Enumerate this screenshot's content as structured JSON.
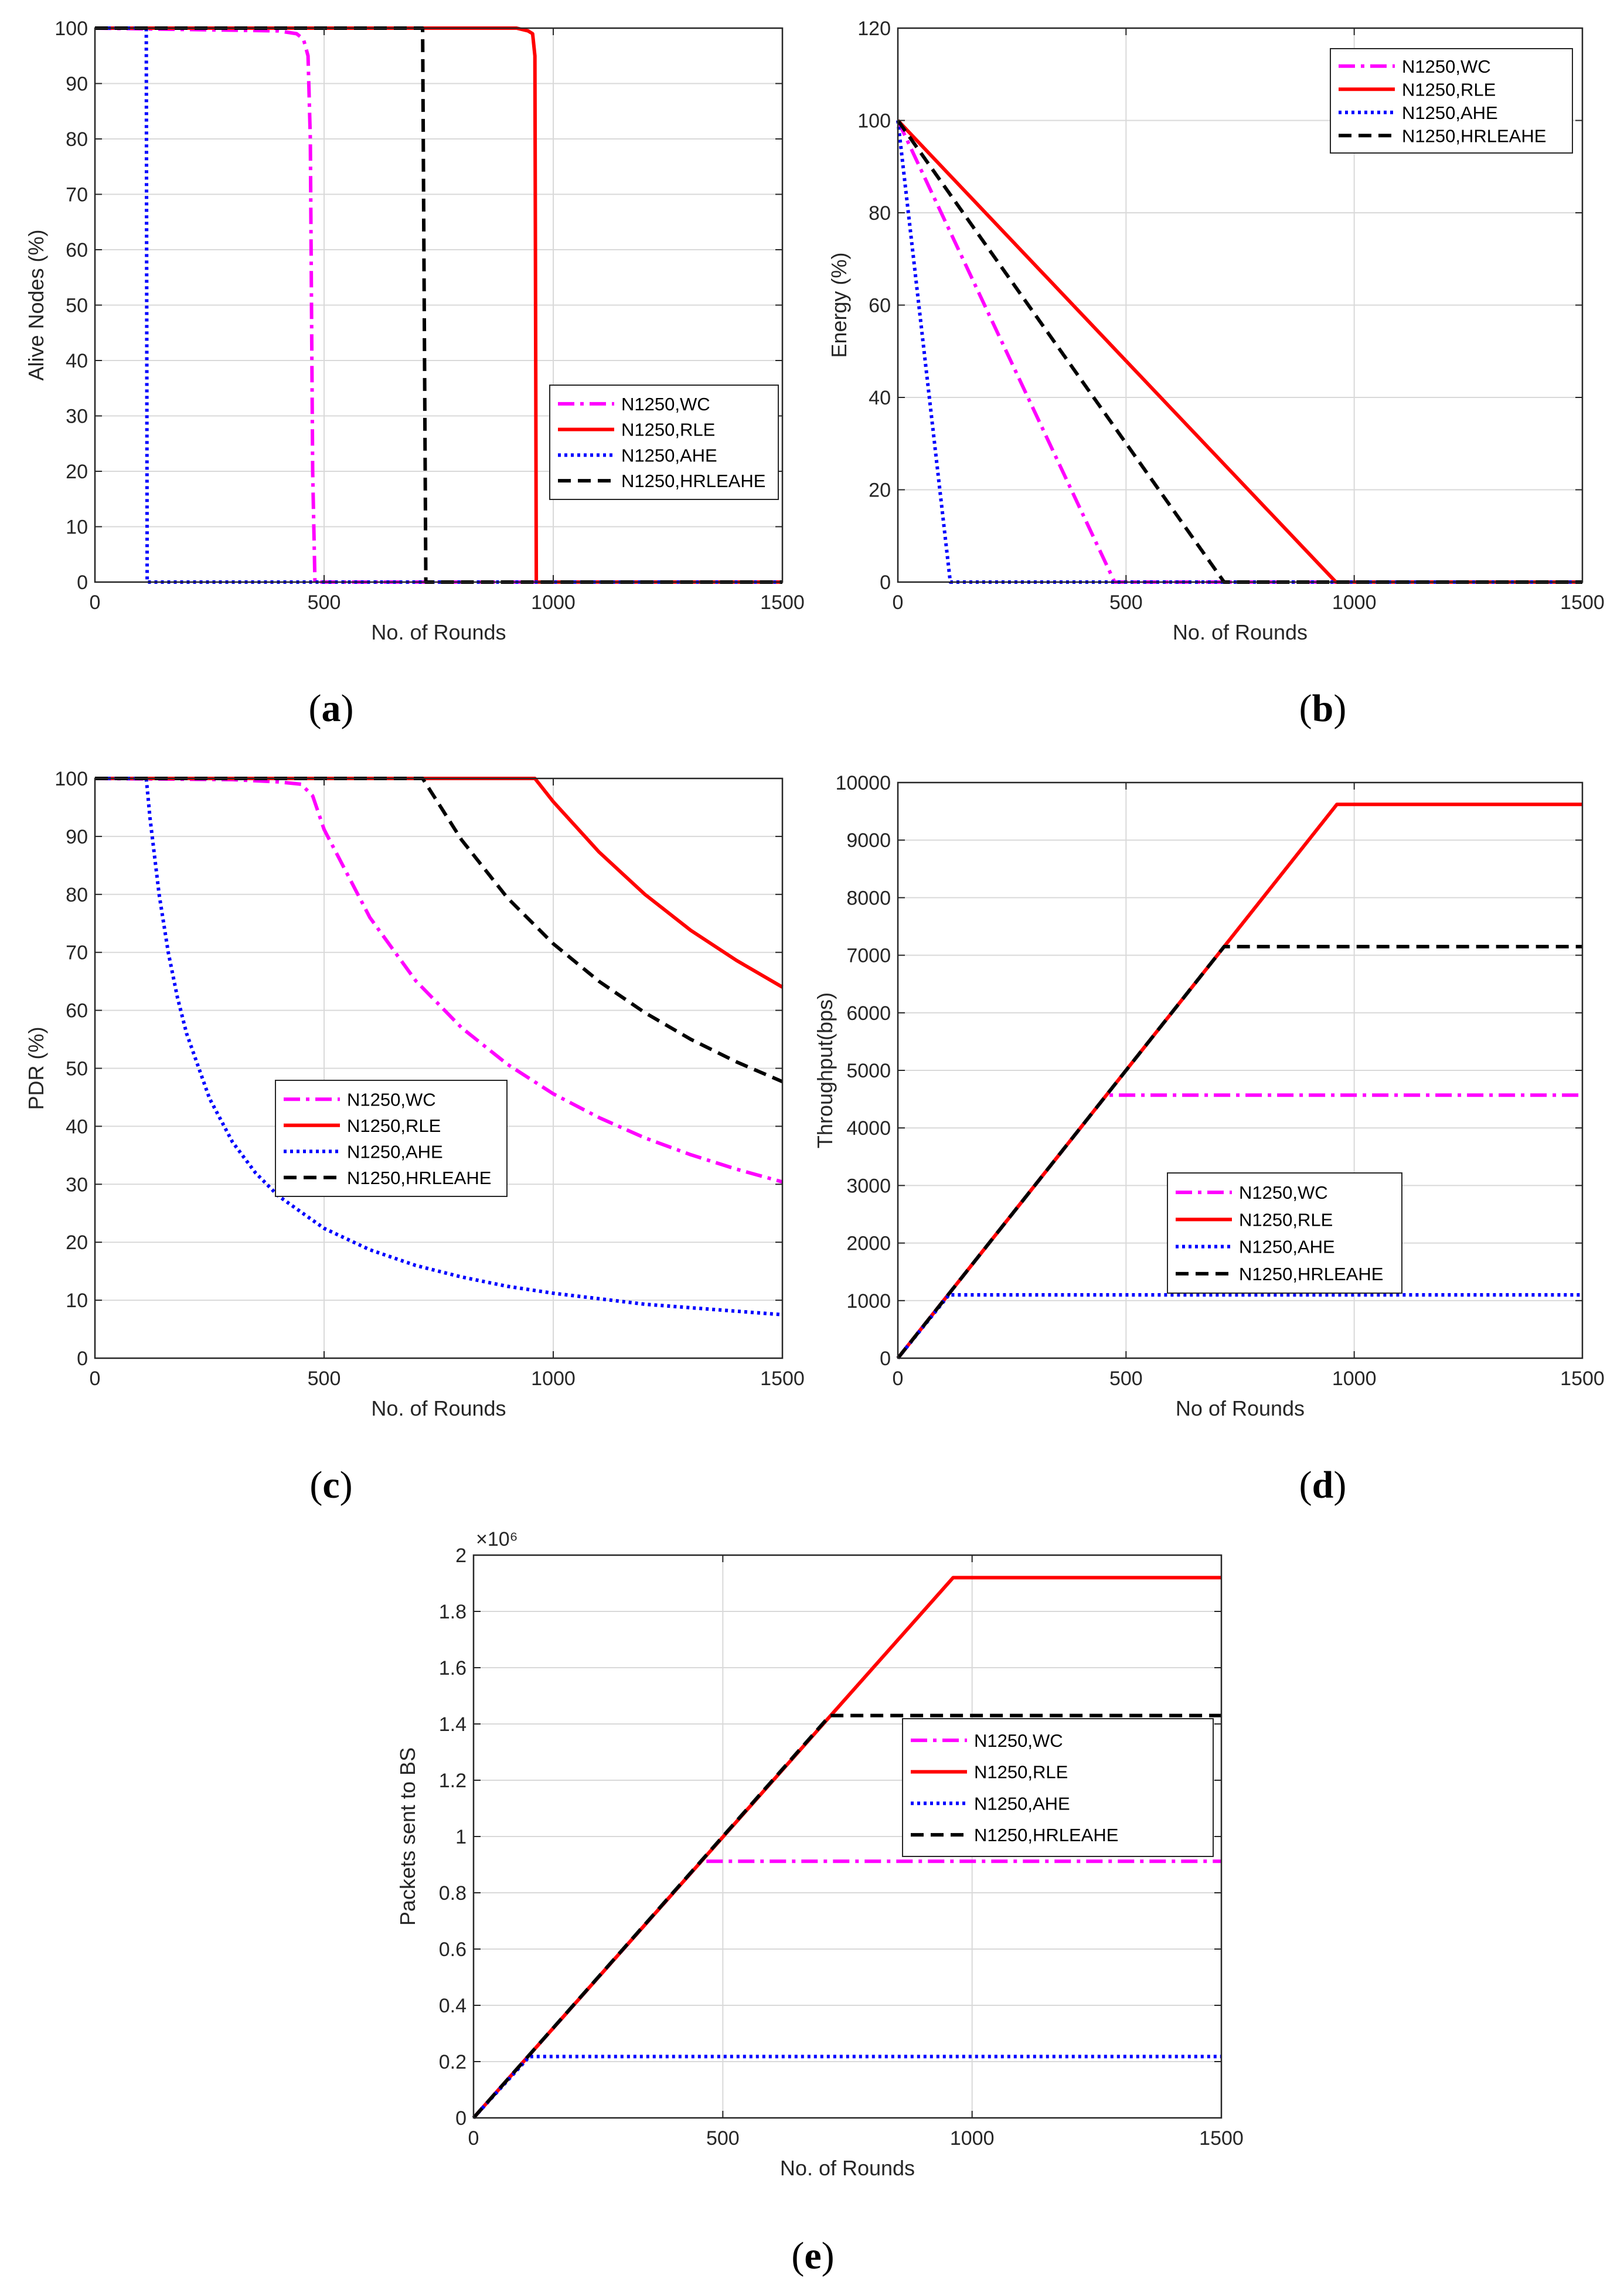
{
  "colors": {
    "WC": "#ff00ff",
    "RLE": "#ff0000",
    "AHE": "#0000ff",
    "HRLEAHE": "#000000",
    "grid": "#d9d9d9",
    "axis": "#262626"
  },
  "chart_data": [
    {
      "id": "a",
      "caption": "a",
      "type": "line",
      "title": "",
      "xlabel": "No. of Rounds",
      "ylabel": "Alive Nodes (%)",
      "xlim": [
        0,
        1500
      ],
      "ylim": [
        0,
        100
      ],
      "xticks": [
        0,
        500,
        1000,
        1500
      ],
      "yticks": [
        0,
        10,
        20,
        30,
        40,
        50,
        60,
        70,
        80,
        90,
        100
      ],
      "ytick_labels": [
        "0",
        "10",
        "20",
        "30",
        "40",
        "50",
        "60",
        "70",
        "80",
        "90",
        "100"
      ],
      "grid": true,
      "legend_position": "lower-right",
      "series": [
        {
          "name": "N1250,WC",
          "key": "WC",
          "x": [
            0,
            400,
            440,
            455,
            465,
            470,
            475,
            480,
            1500
          ],
          "y": [
            100,
            99.5,
            99,
            98,
            95,
            80,
            20,
            0,
            0
          ]
        },
        {
          "name": "N1250,RLE",
          "key": "RLE",
          "x": [
            0,
            920,
            945,
            955,
            960,
            963,
            1500
          ],
          "y": [
            100,
            100,
            99.5,
            99,
            95,
            0,
            0
          ]
        },
        {
          "name": "N1250,AHE",
          "key": "AHE",
          "x": [
            0,
            112,
            114,
            1500
          ],
          "y": [
            100,
            100,
            0,
            0
          ]
        },
        {
          "name": "N1250,HRLEAHE",
          "key": "HRLEAHE",
          "x": [
            0,
            715,
            722,
            1500
          ],
          "y": [
            100,
            100,
            0,
            0
          ]
        }
      ]
    },
    {
      "id": "b",
      "caption": "b",
      "type": "line",
      "title": "",
      "xlabel": "No. of Rounds",
      "ylabel": "Energy (%)",
      "xlim": [
        0,
        1500
      ],
      "ylim": [
        0,
        120
      ],
      "xticks": [
        0,
        500,
        1000,
        1500
      ],
      "yticks": [
        0,
        20,
        40,
        60,
        80,
        100,
        120
      ],
      "ytick_labels": [
        "0",
        "20",
        "40",
        "60",
        "80",
        "100",
        "120"
      ],
      "grid": true,
      "legend_position": "top-right",
      "series": [
        {
          "name": "N1250,WC",
          "key": "WC",
          "x": [
            0,
            475,
            1500
          ],
          "y": [
            100,
            0,
            0
          ]
        },
        {
          "name": "N1250,RLE",
          "key": "RLE",
          "x": [
            0,
            960,
            1500
          ],
          "y": [
            100,
            0,
            0
          ]
        },
        {
          "name": "N1250,AHE",
          "key": "AHE",
          "x": [
            0,
            115,
            1500
          ],
          "y": [
            100,
            0,
            0
          ]
        },
        {
          "name": "N1250,HRLEAHE",
          "key": "HRLEAHE",
          "x": [
            0,
            715,
            1500
          ],
          "y": [
            100,
            0,
            0
          ]
        }
      ]
    },
    {
      "id": "c",
      "caption": "c",
      "type": "line",
      "title": "",
      "xlabel": "No. of Rounds",
      "ylabel": "PDR (%)",
      "xlim": [
        0,
        1500
      ],
      "ylim": [
        0,
        100
      ],
      "xticks": [
        0,
        500,
        1000,
        1500
      ],
      "yticks": [
        0,
        10,
        20,
        30,
        40,
        50,
        60,
        70,
        80,
        90,
        100
      ],
      "ytick_labels": [
        "0",
        "10",
        "20",
        "30",
        "40",
        "50",
        "60",
        "70",
        "80",
        "90",
        "100"
      ],
      "grid": true,
      "legend_position": "center-left",
      "series": [
        {
          "name": "N1250,WC",
          "key": "WC",
          "x": [
            0,
            300,
            400,
            450,
            475,
            500,
            600,
            700,
            800,
            900,
            1000,
            1100,
            1200,
            1300,
            1400,
            1500
          ],
          "y": [
            100,
            99.8,
            99.4,
            99,
            97,
            91.2,
            76,
            65.1,
            57,
            50.7,
            45.6,
            41.5,
            38,
            35.1,
            32.6,
            30.4
          ]
        },
        {
          "name": "N1250,RLE",
          "key": "RLE",
          "x": [
            0,
            960,
            1000,
            1100,
            1200,
            1300,
            1400,
            1500
          ],
          "y": [
            100,
            100,
            96,
            87.3,
            80,
            73.8,
            68.6,
            64
          ]
        },
        {
          "name": "N1250,AHE",
          "key": "AHE",
          "x": [
            0,
            112,
            120,
            140,
            160,
            180,
            200,
            250,
            300,
            350,
            400,
            500,
            600,
            700,
            800,
            900,
            1000,
            1200,
            1500
          ],
          "y": [
            100,
            100,
            93.3,
            80,
            70,
            62.2,
            56,
            44.8,
            37.3,
            32,
            28,
            22.4,
            18.7,
            16,
            14,
            12.4,
            11.2,
            9.3,
            7.5
          ]
        },
        {
          "name": "N1250,HRLEAHE",
          "key": "HRLEAHE",
          "x": [
            0,
            715,
            800,
            900,
            1000,
            1100,
            1200,
            1300,
            1400,
            1500
          ],
          "y": [
            100,
            100,
            89.4,
            79.4,
            71.5,
            65,
            59.6,
            55,
            51.1,
            47.7
          ]
        }
      ]
    },
    {
      "id": "d",
      "caption": "d",
      "type": "line",
      "title": "",
      "xlabel": "No of Rounds",
      "ylabel": "Throughput(bps)",
      "xlim": [
        0,
        1500
      ],
      "ylim": [
        0,
        10000
      ],
      "xticks": [
        0,
        500,
        1000,
        1500
      ],
      "yticks": [
        0,
        1000,
        2000,
        3000,
        4000,
        5000,
        6000,
        7000,
        8000,
        9000,
        10000
      ],
      "ytick_labels": [
        "0",
        "1000",
        "2000",
        "3000",
        "4000",
        "5000",
        "6000",
        "7000",
        "8000",
        "9000",
        "10000"
      ],
      "grid": true,
      "legend_position": "center-right",
      "series": [
        {
          "name": "N1250,WC",
          "key": "WC",
          "x": [
            0,
            457,
            1500
          ],
          "y": [
            0,
            4570,
            4570
          ]
        },
        {
          "name": "N1250,RLE",
          "key": "RLE",
          "x": [
            0,
            962,
            1500
          ],
          "y": [
            0,
            9620,
            9620
          ]
        },
        {
          "name": "N1250,AHE",
          "key": "AHE",
          "x": [
            0,
            112,
            1500
          ],
          "y": [
            0,
            1100,
            1100
          ]
        },
        {
          "name": "N1250,HRLEAHE",
          "key": "HRLEAHE",
          "x": [
            0,
            715,
            1500
          ],
          "y": [
            0,
            7150,
            7150
          ]
        }
      ]
    },
    {
      "id": "e",
      "caption": "e",
      "type": "line",
      "title": "",
      "xlabel": "No. of Rounds",
      "ylabel": "Packets sent to BS",
      "xlim": [
        0,
        1500
      ],
      "ylim": [
        0,
        2000000
      ],
      "y_multiplier_label": "×10⁶",
      "xticks": [
        0,
        500,
        1000,
        1500
      ],
      "yticks": [
        0,
        200000,
        400000,
        600000,
        800000,
        1000000,
        1200000,
        1400000,
        1600000,
        1800000,
        2000000
      ],
      "ytick_labels": [
        "0",
        "0.2",
        "0.4",
        "0.6",
        "0.8",
        "1",
        "1.2",
        "1.4",
        "1.6",
        "1.8",
        "2"
      ],
      "grid": true,
      "legend_position": "center-right",
      "series": [
        {
          "name": "N1250,WC",
          "key": "WC",
          "x": [
            0,
            457,
            1500
          ],
          "y": [
            0,
            912000,
            912000
          ]
        },
        {
          "name": "N1250,RLE",
          "key": "RLE",
          "x": [
            0,
            962,
            1500
          ],
          "y": [
            0,
            1920000,
            1920000
          ]
        },
        {
          "name": "N1250,AHE",
          "key": "AHE",
          "x": [
            0,
            112,
            1500
          ],
          "y": [
            0,
            218000,
            218000
          ]
        },
        {
          "name": "N1250,HRLEAHE",
          "key": "HRLEAHE",
          "x": [
            0,
            715,
            1500
          ],
          "y": [
            0,
            1430000,
            1430000
          ]
        }
      ]
    }
  ]
}
